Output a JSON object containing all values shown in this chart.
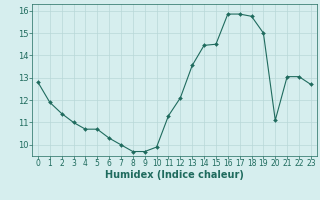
{
  "x": [
    0,
    1,
    2,
    3,
    4,
    5,
    6,
    7,
    8,
    9,
    10,
    11,
    12,
    13,
    14,
    15,
    16,
    17,
    18,
    19,
    20,
    21,
    22,
    23
  ],
  "y": [
    12.8,
    11.9,
    11.4,
    11.0,
    10.7,
    10.7,
    10.3,
    10.0,
    9.7,
    9.7,
    9.9,
    11.3,
    12.1,
    13.55,
    14.45,
    14.5,
    15.85,
    15.85,
    15.75,
    15.0,
    11.1,
    13.05,
    13.05,
    12.7
  ],
  "xlabel": "Humidex (Indice chaleur)",
  "ylim": [
    9.5,
    16.3
  ],
  "xlim": [
    -0.5,
    23.5
  ],
  "yticks": [
    10,
    11,
    12,
    13,
    14,
    15,
    16
  ],
  "xticks": [
    0,
    1,
    2,
    3,
    4,
    5,
    6,
    7,
    8,
    9,
    10,
    11,
    12,
    13,
    14,
    15,
    16,
    17,
    18,
    19,
    20,
    21,
    22,
    23
  ],
  "line_color": "#1f6b5e",
  "marker_color": "#1f6b5e",
  "bg_color": "#d6eeee",
  "grid_color": "#b8d8d8",
  "tick_label_color": "#1f6b5e",
  "xlabel_color": "#1f6b5e",
  "xlabel_fontsize": 7,
  "ylabel_fontsize": 6,
  "tick_fontsize": 5.5
}
